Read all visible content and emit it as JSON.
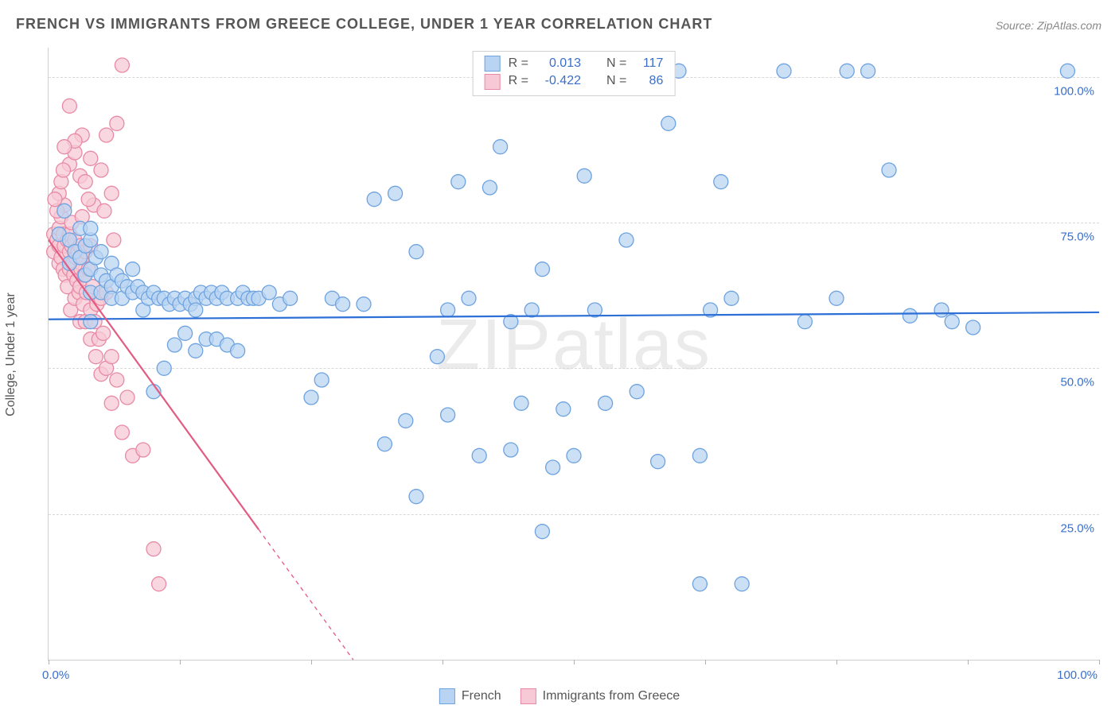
{
  "title": "FRENCH VS IMMIGRANTS FROM GREECE COLLEGE, UNDER 1 YEAR CORRELATION CHART",
  "source": "Source: ZipAtlas.com",
  "watermark": "ZIPatlas",
  "ylabel": "College, Under 1 year",
  "chart": {
    "type": "scatter",
    "xlim": [
      0,
      100
    ],
    "ylim": [
      0,
      105
    ],
    "yticks": [
      25,
      50,
      75,
      100
    ],
    "ytick_labels": [
      "25.0%",
      "50.0%",
      "75.0%",
      "100.0%"
    ],
    "xtick_positions": [
      0,
      12.5,
      25,
      37.5,
      50,
      62.5,
      75,
      87.5,
      100
    ],
    "xaxis_label_left": "0.0%",
    "xaxis_label_right": "100.0%",
    "background_color": "#ffffff",
    "grid_color": "#d8d8d8",
    "marker_radius": 9,
    "marker_stroke_width": 1.3,
    "line_width": 2.2
  },
  "series": [
    {
      "name": "French",
      "fill": "#b9d4f2",
      "stroke": "#6ea3e0",
      "line_color": "#2c6fd6",
      "R": "0.013",
      "N": "117",
      "trend": {
        "x1": 0,
        "y1": 58.4,
        "x2": 100,
        "y2": 59.6
      },
      "points": [
        [
          1,
          73
        ],
        [
          1.5,
          77
        ],
        [
          2,
          72
        ],
        [
          2,
          68
        ],
        [
          2.5,
          70
        ],
        [
          3,
          74
        ],
        [
          3,
          69
        ],
        [
          3.5,
          71
        ],
        [
          3.5,
          66
        ],
        [
          4,
          72
        ],
        [
          4,
          67
        ],
        [
          4,
          63
        ],
        [
          4,
          74
        ],
        [
          4,
          58
        ],
        [
          4.5,
          69
        ],
        [
          5,
          66
        ],
        [
          5,
          70
        ],
        [
          5,
          63
        ],
        [
          5.5,
          65
        ],
        [
          6,
          64
        ],
        [
          6,
          68
        ],
        [
          6,
          62
        ],
        [
          6.5,
          66
        ],
        [
          7,
          65
        ],
        [
          7,
          62
        ],
        [
          7.5,
          64
        ],
        [
          8,
          63
        ],
        [
          8,
          67
        ],
        [
          8.5,
          64
        ],
        [
          9,
          63
        ],
        [
          9,
          60
        ],
        [
          9.5,
          62
        ],
        [
          10,
          63
        ],
        [
          10.5,
          62
        ],
        [
          11,
          62
        ],
        [
          11.5,
          61
        ],
        [
          12,
          62
        ],
        [
          12.5,
          61
        ],
        [
          13,
          62
        ],
        [
          13.5,
          61
        ],
        [
          14,
          62
        ],
        [
          14.5,
          63
        ],
        [
          15,
          62
        ],
        [
          15.5,
          63
        ],
        [
          16,
          62
        ],
        [
          16.5,
          63
        ],
        [
          17,
          62
        ],
        [
          18,
          62
        ],
        [
          18.5,
          63
        ],
        [
          19,
          62
        ],
        [
          19.5,
          62
        ],
        [
          20,
          62
        ],
        [
          21,
          63
        ],
        [
          22,
          61
        ],
        [
          23,
          62
        ],
        [
          12,
          54
        ],
        [
          13,
          56
        ],
        [
          14,
          53
        ],
        [
          15,
          55
        ],
        [
          16,
          55
        ],
        [
          17,
          54
        ],
        [
          18,
          53
        ],
        [
          10,
          46
        ],
        [
          11,
          50
        ],
        [
          14,
          60
        ],
        [
          25,
          45
        ],
        [
          26,
          48
        ],
        [
          27,
          62
        ],
        [
          28,
          61
        ],
        [
          30,
          61
        ],
        [
          31,
          79
        ],
        [
          32,
          37
        ],
        [
          33,
          80
        ],
        [
          34,
          41
        ],
        [
          35,
          70
        ],
        [
          35,
          28
        ],
        [
          37,
          52
        ],
        [
          38,
          42
        ],
        [
          38,
          60
        ],
        [
          39,
          82
        ],
        [
          40,
          62
        ],
        [
          41,
          35
        ],
        [
          42,
          81
        ],
        [
          43,
          88
        ],
        [
          44,
          58
        ],
        [
          45,
          44
        ],
        [
          46,
          60
        ],
        [
          47,
          67
        ],
        [
          47,
          22
        ],
        [
          48,
          33
        ],
        [
          49,
          43
        ],
        [
          50,
          35
        ],
        [
          51,
          83
        ],
        [
          52,
          60
        ],
        [
          53,
          44
        ],
        [
          55,
          101
        ],
        [
          56,
          46
        ],
        [
          58,
          34
        ],
        [
          59,
          92
        ],
        [
          60,
          101
        ],
        [
          62,
          13
        ],
        [
          62,
          35
        ],
        [
          63,
          60
        ],
        [
          64,
          82
        ],
        [
          65,
          62
        ],
        [
          66,
          13
        ],
        [
          70,
          101
        ],
        [
          72,
          58
        ],
        [
          75,
          62
        ],
        [
          76,
          101
        ],
        [
          78,
          101
        ],
        [
          80,
          84
        ],
        [
          82,
          59
        ],
        [
          85,
          60
        ],
        [
          86,
          58
        ],
        [
          88,
          57
        ],
        [
          97,
          101
        ],
        [
          55,
          72
        ],
        [
          44,
          36
        ]
      ]
    },
    {
      "name": "Immigrants from Greece",
      "fill": "#f7c9d6",
      "stroke": "#e88aa5",
      "line_color": "#e35b82",
      "R": "-0.422",
      "N": "86",
      "trend": {
        "x1": 0,
        "y1": 72,
        "x2": 29,
        "y2": 0
      },
      "trend_dashed_from_x": 20,
      "points": [
        [
          0.5,
          73
        ],
        [
          0.5,
          70
        ],
        [
          0.8,
          72
        ],
        [
          1,
          74
        ],
        [
          1,
          71
        ],
        [
          1,
          68
        ],
        [
          1.2,
          69
        ],
        [
          1.2,
          76
        ],
        [
          1.4,
          73
        ],
        [
          1.4,
          67
        ],
        [
          1.5,
          71
        ],
        [
          1.5,
          78
        ],
        [
          1.6,
          66
        ],
        [
          1.8,
          72
        ],
        [
          1.8,
          64
        ],
        [
          2,
          73
        ],
        [
          2,
          70
        ],
        [
          2,
          67
        ],
        [
          2.1,
          60
        ],
        [
          2.2,
          71
        ],
        [
          2.2,
          75
        ],
        [
          2.3,
          68
        ],
        [
          2.4,
          66
        ],
        [
          2.5,
          72
        ],
        [
          2.5,
          62
        ],
        [
          2.6,
          69
        ],
        [
          2.7,
          65
        ],
        [
          2.8,
          70
        ],
        [
          2.9,
          63
        ],
        [
          3,
          71
        ],
        [
          3,
          64
        ],
        [
          3,
          58
        ],
        [
          3.1,
          67
        ],
        [
          3.2,
          69
        ],
        [
          3.3,
          61
        ],
        [
          3.4,
          66
        ],
        [
          3.5,
          58
        ],
        [
          3.5,
          70
        ],
        [
          3.6,
          63
        ],
        [
          3.8,
          67
        ],
        [
          4,
          60
        ],
        [
          4,
          55
        ],
        [
          4,
          71
        ],
        [
          4.2,
          64
        ],
        [
          4.4,
          58
        ],
        [
          4.5,
          52
        ],
        [
          4.6,
          61
        ],
        [
          4.8,
          55
        ],
        [
          5,
          62
        ],
        [
          5,
          49
        ],
        [
          5.2,
          56
        ],
        [
          5.5,
          50
        ],
        [
          5.5,
          63
        ],
        [
          6,
          52
        ],
        [
          6,
          44
        ],
        [
          6.5,
          48
        ],
        [
          7,
          39
        ],
        [
          7.5,
          45
        ],
        [
          8,
          35
        ],
        [
          9,
          36
        ],
        [
          10,
          19
        ],
        [
          10.5,
          13
        ],
        [
          2,
          85
        ],
        [
          2.5,
          87
        ],
        [
          3,
          83
        ],
        [
          3.2,
          90
        ],
        [
          3.5,
          82
        ],
        [
          4,
          86
        ],
        [
          4.3,
          78
        ],
        [
          5,
          84
        ],
        [
          5.3,
          77
        ],
        [
          5.5,
          90
        ],
        [
          6,
          80
        ],
        [
          6.2,
          72
        ],
        [
          6.5,
          92
        ],
        [
          7,
          102
        ],
        [
          2,
          95
        ],
        [
          2.5,
          89
        ],
        [
          1.5,
          88
        ],
        [
          1,
          80
        ],
        [
          1.2,
          82
        ],
        [
          1.4,
          84
        ],
        [
          0.8,
          77
        ],
        [
          0.6,
          79
        ],
        [
          3.8,
          79
        ],
        [
          3.2,
          76
        ]
      ]
    }
  ],
  "legend_top": {
    "rows": [
      {
        "swatch_fill": "#b9d4f2",
        "swatch_stroke": "#6ea3e0",
        "R_label": "R =",
        "R_value": "0.013",
        "N_label": "N =",
        "N_value": "117"
      },
      {
        "swatch_fill": "#f7c9d6",
        "swatch_stroke": "#e88aa5",
        "R_label": "R =",
        "R_value": "-0.422",
        "N_label": "N =",
        "N_value": "86"
      }
    ]
  },
  "legend_bottom": {
    "items": [
      {
        "swatch_fill": "#b9d4f2",
        "swatch_stroke": "#6ea3e0",
        "label": "French"
      },
      {
        "swatch_fill": "#f7c9d6",
        "swatch_stroke": "#e88aa5",
        "label": "Immigrants from Greece"
      }
    ]
  }
}
